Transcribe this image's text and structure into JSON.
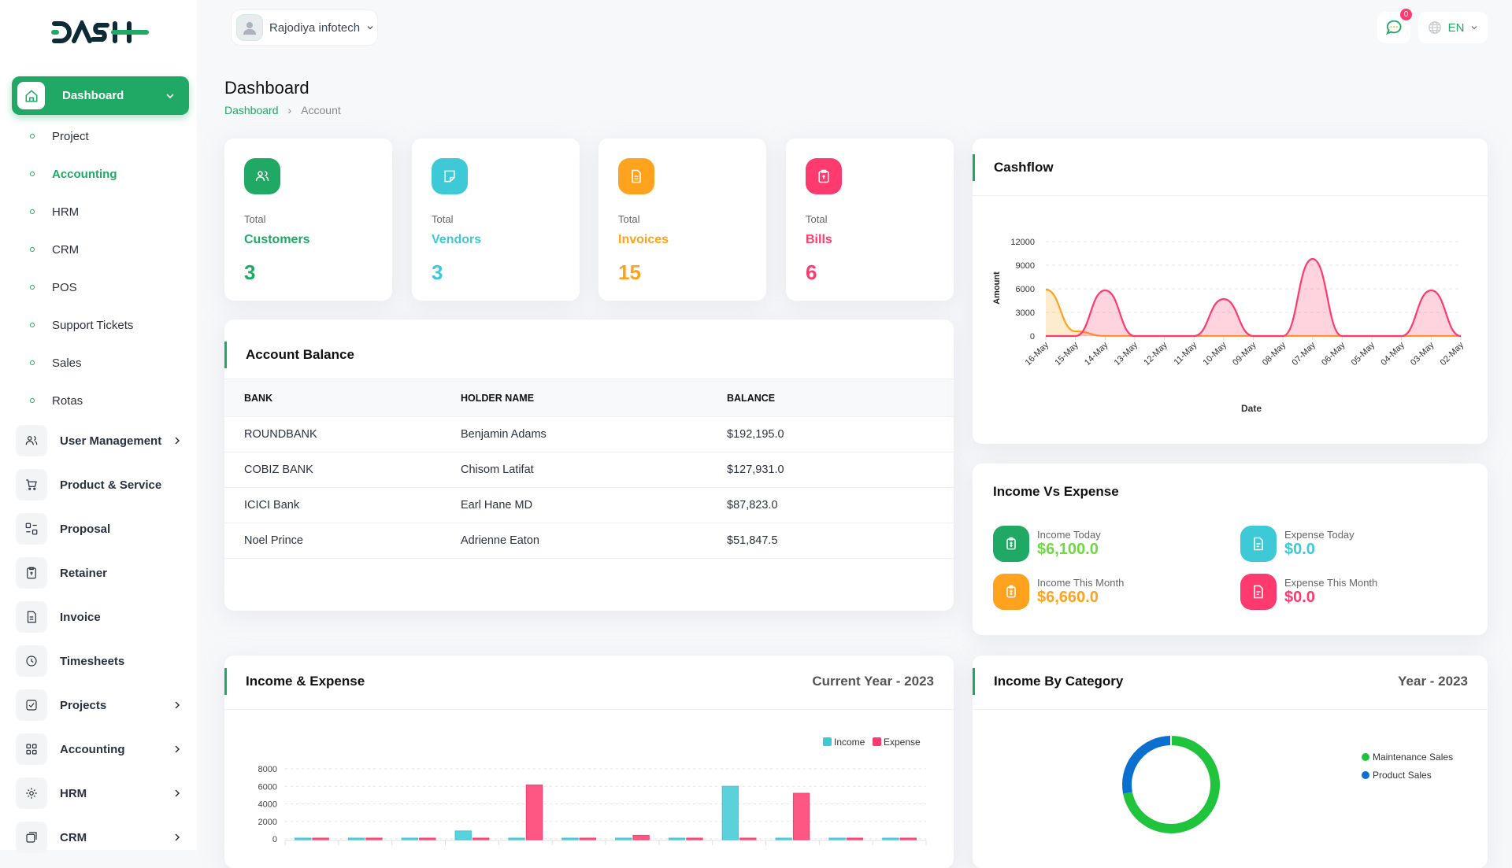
{
  "header": {
    "company": "Rajodiya infotech",
    "notification_count": "0",
    "language": "EN"
  },
  "logo_text": "DASH",
  "sidebar": {
    "active": {
      "label": "Dashboard"
    },
    "sub_items": [
      {
        "label": "Project"
      },
      {
        "label": "Accounting"
      },
      {
        "label": "HRM"
      },
      {
        "label": "CRM"
      },
      {
        "label": "POS"
      },
      {
        "label": "Support Tickets"
      },
      {
        "label": "Sales"
      },
      {
        "label": "Rotas"
      }
    ],
    "items": [
      {
        "label": "User Management",
        "icon": "users-icon",
        "has_children": true
      },
      {
        "label": "Product & Service",
        "icon": "cart-icon",
        "has_children": false
      },
      {
        "label": "Proposal",
        "icon": "proposal-icon",
        "has_children": false
      },
      {
        "label": "Retainer",
        "icon": "retainer-icon",
        "has_children": false
      },
      {
        "label": "Invoice",
        "icon": "invoice-icon",
        "has_children": false
      },
      {
        "label": "Timesheets",
        "icon": "clock-icon",
        "has_children": false
      },
      {
        "label": "Projects",
        "icon": "checkbox-icon",
        "has_children": true
      },
      {
        "label": "Accounting",
        "icon": "apps-icon",
        "has_children": true
      },
      {
        "label": "HRM",
        "icon": "hrm-icon",
        "has_children": true
      },
      {
        "label": "CRM",
        "icon": "crm-icon",
        "has_children": true
      }
    ]
  },
  "page": {
    "title": "Dashboard",
    "breadcrumb": [
      "Dashboard",
      "Account"
    ]
  },
  "stats": [
    {
      "total": "Total",
      "label": "Customers",
      "value": "3",
      "color": "#20a964",
      "icon": "users-icon"
    },
    {
      "total": "Total",
      "label": "Vendors",
      "value": "3",
      "color": "#3ec9d6",
      "icon": "note-icon"
    },
    {
      "total": "Total",
      "label": "Invoices",
      "value": "15",
      "color": "#ffa21d",
      "icon": "file-icon"
    },
    {
      "total": "Total",
      "label": "Bills",
      "value": "6",
      "color": "#ff3a6e",
      "icon": "clipboard-icon"
    }
  ],
  "account_balance": {
    "title": "Account Balance",
    "columns": [
      "BANK",
      "HOLDER NAME",
      "BALANCE"
    ],
    "rows": [
      [
        "ROUNDBANK",
        "Benjamin Adams",
        "$192,195.0"
      ],
      [
        "COBIZ BANK",
        "Chisom Latifat",
        "$127,931.0"
      ],
      [
        "ICICI Bank",
        "Earl Hane MD",
        "$87,823.0"
      ],
      [
        "Noel Prince",
        "Adrienne Eaton",
        "$51,847.5"
      ]
    ]
  },
  "income_vs_expense": {
    "title": "Income Vs Expense",
    "items": [
      {
        "label": "Income Today",
        "value": "$6,100.0",
        "color": "#6fd943",
        "icon_bg": "#20a964"
      },
      {
        "label": "Expense Today",
        "value": "$0.0",
        "color": "#3ec9d6",
        "icon_bg": "#3ec9d6"
      },
      {
        "label": "Income This Month",
        "value": "$6,660.0",
        "color": "#ffa21d",
        "icon_bg": "#ffa21d"
      },
      {
        "label": "Expense This Month",
        "value": "$0.0",
        "color": "#ff3a6e",
        "icon_bg": "#ff3a6e"
      }
    ]
  },
  "income_expense_card": {
    "title": "Income & Expense",
    "period": "Current Year - 2023"
  },
  "income_category_card": {
    "title": "Income By Category",
    "period": "Year - 2023"
  },
  "chart_data": [
    {
      "type": "area",
      "title": "Cashflow",
      "xlabel": "Date",
      "ylabel": "Amount",
      "categories": [
        "16-May",
        "15-May",
        "14-May",
        "13-May",
        "12-May",
        "11-May",
        "10-May",
        "09-May",
        "08-May",
        "07-May",
        "06-May",
        "05-May",
        "04-May",
        "03-May",
        "02-May"
      ],
      "yticks": [
        "0",
        "3000",
        "6000",
        "9000",
        "12000"
      ],
      "ylim": [
        0,
        12000
      ],
      "grid": true,
      "series": [
        {
          "color": "#ffa21d",
          "values": [
            5900,
            600,
            0,
            0,
            0,
            0,
            0,
            0,
            0,
            0,
            0,
            0,
            0,
            0,
            0
          ]
        },
        {
          "color": "#ff3a6e",
          "values": [
            0,
            0,
            5800,
            0,
            0,
            0,
            4700,
            0,
            0,
            9800,
            0,
            0,
            0,
            5800,
            0
          ]
        }
      ]
    },
    {
      "type": "bar",
      "title": "Income & Expense",
      "yticks": [
        "0",
        "2000",
        "4000",
        "6000",
        "8000"
      ],
      "ylim": [
        0,
        8000
      ],
      "grid": true,
      "legend": "top-right",
      "series": [
        {
          "name": "Income",
          "color": "#3ec9d6",
          "values": [
            150,
            0,
            0,
            1000,
            0,
            0,
            150,
            0,
            6100,
            0,
            0,
            0
          ]
        },
        {
          "name": "Expense",
          "color": "#ff3a6e",
          "values": [
            0,
            0,
            0,
            0,
            6250,
            0,
            500,
            0,
            0,
            5300,
            0,
            0
          ]
        }
      ]
    },
    {
      "type": "pie",
      "title": "Income By Category",
      "legend": "right",
      "series": [
        {
          "name": "Maintenance Sales",
          "color": "#20c33c",
          "value": 0.72
        },
        {
          "name": "Product Sales",
          "color": "#0a6fcf",
          "value": 0.28
        }
      ]
    }
  ]
}
